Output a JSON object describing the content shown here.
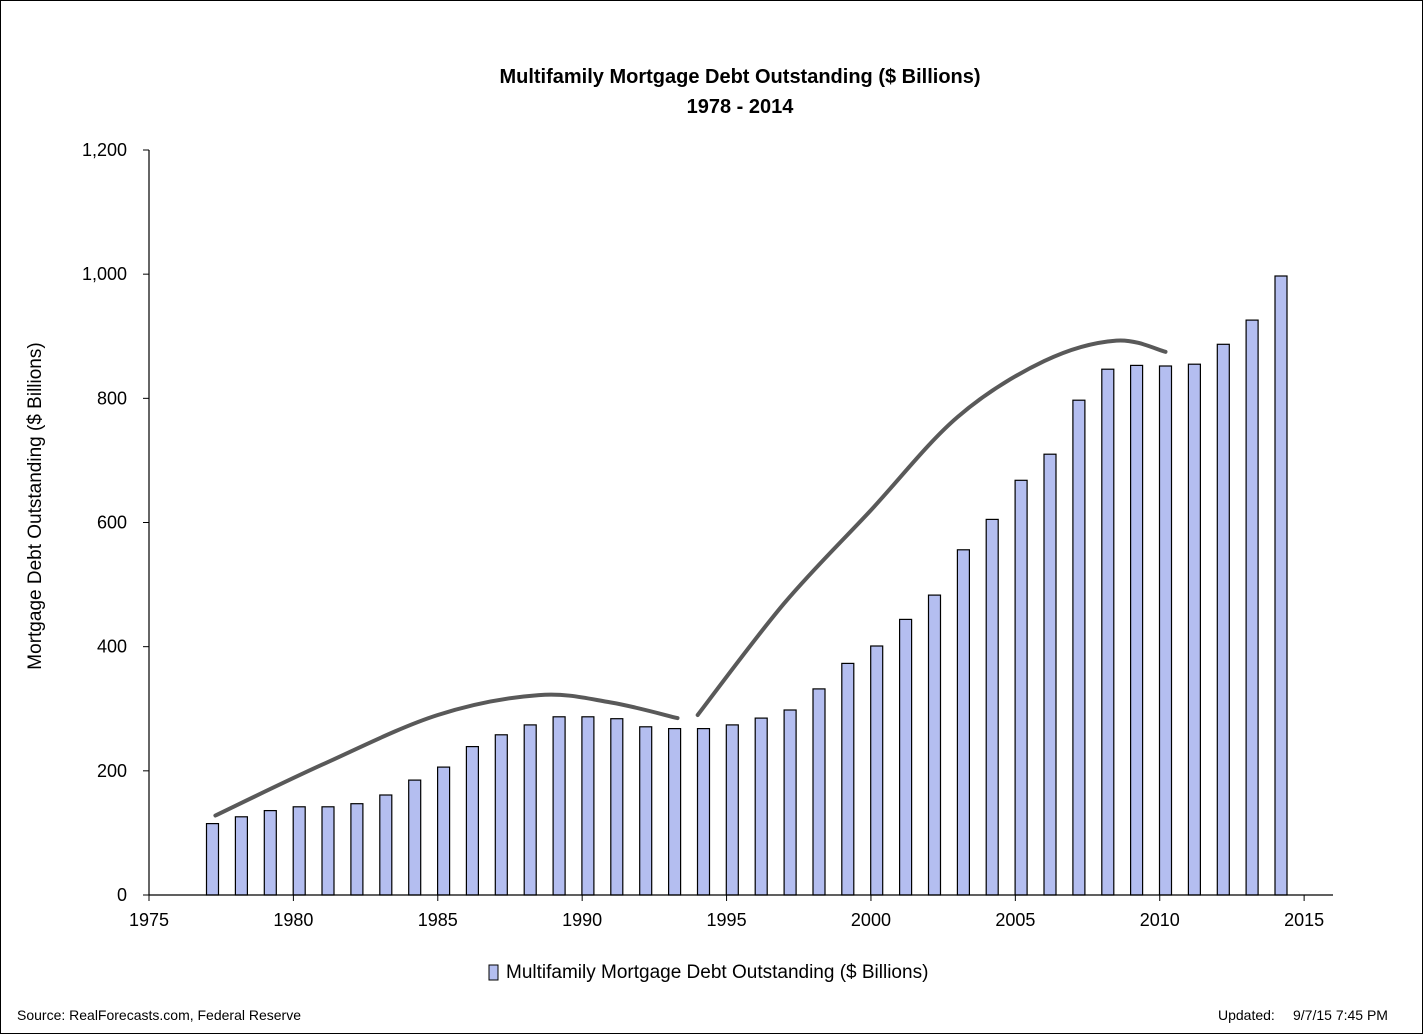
{
  "chart_data": {
    "type": "bar",
    "title": "Multifamily Mortgage Debt Outstanding ($ Billions)",
    "subtitle": "1978 - 2014",
    "xlabel": "",
    "ylabel": "Mortgage Debt Outstanding ($ Billions)",
    "xlim": [
      1975,
      2016
    ],
    "ylim": [
      0,
      1200
    ],
    "x_ticks": [
      "1975",
      "1980",
      "1985",
      "1990",
      "1995",
      "2000",
      "2005",
      "2010",
      "2015"
    ],
    "y_ticks": [
      "0",
      "200",
      "400",
      "600",
      "800",
      "1,000",
      "1,200"
    ],
    "grid": false,
    "legend_position": "bottom",
    "bar_color": "#b4bef0",
    "bar_edge_color": "#000000",
    "trend_color": "#595959",
    "series": [
      {
        "name": "Multifamily Mortgage Debt Outstanding ($ Billions)",
        "x": [
          1977,
          1978,
          1979,
          1980,
          1981,
          1982,
          1983,
          1984,
          1985,
          1986,
          1987,
          1988,
          1989,
          1990,
          1991,
          1992,
          1993,
          1994,
          1995,
          1996,
          1997,
          1998,
          1999,
          2000,
          2001,
          2002,
          2003,
          2004,
          2005,
          2006,
          2007,
          2008,
          2009,
          2010,
          2011,
          2012,
          2013,
          2014
        ],
        "values": [
          115,
          126,
          136,
          142,
          142,
          147,
          161,
          185,
          206,
          239,
          258,
          274,
          287,
          287,
          284,
          271,
          268,
          268,
          274,
          285,
          298,
          332,
          373,
          401,
          444,
          483,
          556,
          605,
          668,
          710,
          797,
          847,
          853,
          852,
          855,
          887,
          926,
          997
        ]
      }
    ],
    "annotations": [
      {
        "type": "trend-curve",
        "points": [
          [
            1977.3,
            128
          ],
          [
            1981,
            210
          ],
          [
            1985,
            290
          ],
          [
            1988.5,
            322
          ],
          [
            1991,
            310
          ],
          [
            1993.3,
            285
          ]
        ]
      },
      {
        "type": "trend-curve",
        "points": [
          [
            1994,
            290
          ],
          [
            1997,
            470
          ],
          [
            2000,
            620
          ],
          [
            2003,
            770
          ],
          [
            2006,
            860
          ],
          [
            2008.5,
            893
          ],
          [
            2010.2,
            875
          ]
        ]
      }
    ]
  },
  "footer": {
    "source": "Source: RealForecasts.com, Federal Reserve",
    "updated_label": "Updated:",
    "updated_value": "9/7/15 7:45 PM"
  }
}
